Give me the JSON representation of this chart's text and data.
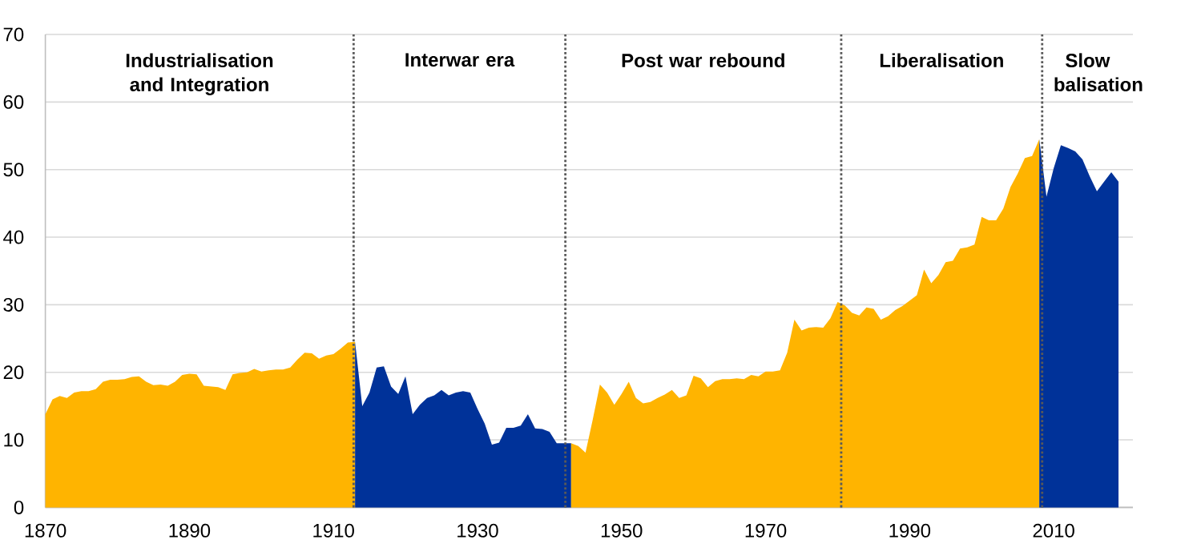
{
  "chart_data": {
    "type": "area",
    "series": [
      {
        "color": "#ffb400",
        "x": [
          1870,
          1871,
          1872,
          1873,
          1874,
          1875,
          1876,
          1877,
          1878,
          1879,
          1880,
          1881,
          1882,
          1883,
          1884,
          1885,
          1886,
          1887,
          1888,
          1889,
          1890,
          1891,
          1892,
          1893,
          1894,
          1895,
          1896,
          1897,
          1898,
          1899,
          1900,
          1901,
          1902,
          1903,
          1904,
          1905,
          1906,
          1907,
          1908,
          1909,
          1910,
          1911,
          1912,
          1913
        ],
        "values": [
          13.8,
          16.0,
          16.5,
          16.2,
          17.0,
          17.2,
          17.2,
          17.5,
          18.6,
          18.9,
          18.9,
          19.0,
          19.3,
          19.4,
          18.6,
          18.1,
          18.2,
          18.0,
          18.6,
          19.6,
          19.8,
          19.7,
          18.0,
          17.9,
          17.8,
          17.4,
          19.7,
          19.9,
          20.0,
          20.5,
          20.1,
          20.3,
          20.4,
          20.4,
          20.7,
          21.9,
          22.9,
          22.8,
          22.0,
          22.5,
          22.7,
          23.5,
          24.4,
          24.5
        ]
      },
      {
        "color": "#003299",
        "x": [
          1913,
          1914,
          1915,
          1916,
          1917,
          1918,
          1919,
          1920,
          1921,
          1922,
          1923,
          1924,
          1925,
          1926,
          1927,
          1928,
          1929,
          1930,
          1931,
          1932,
          1933,
          1934,
          1935,
          1936,
          1937,
          1938,
          1939,
          1940,
          1941,
          1942,
          1943
        ],
        "values": [
          24.5,
          15.0,
          17.0,
          20.7,
          20.9,
          17.9,
          16.8,
          19.4,
          13.8,
          15.2,
          16.2,
          16.6,
          17.4,
          16.6,
          17.0,
          17.2,
          17.0,
          14.6,
          12.4,
          9.3,
          9.6,
          11.8,
          11.8,
          12.1,
          13.8,
          11.7,
          11.6,
          11.2,
          9.5,
          9.5,
          9.5
        ]
      },
      {
        "color": "#ffb400",
        "x": [
          1943,
          1944,
          1945,
          1946,
          1947,
          1948,
          1949,
          1950,
          1951,
          1952,
          1953,
          1954,
          1955,
          1956,
          1957,
          1958,
          1959,
          1960,
          1961,
          1962,
          1963,
          1964,
          1965,
          1966,
          1967,
          1968,
          1969,
          1970,
          1971,
          1972,
          1973,
          1974,
          1975,
          1976,
          1977,
          1978,
          1979,
          1980,
          1981,
          1982,
          1983,
          1984,
          1985,
          1986,
          1987,
          1988,
          1989,
          1990,
          1991,
          1992,
          1993,
          1994,
          1995,
          1996,
          1997,
          1998,
          1999,
          2000,
          2001,
          2002,
          2003,
          2004,
          2005,
          2006,
          2007,
          2008
        ],
        "values": [
          9.5,
          9.1,
          8.1,
          13.0,
          18.2,
          17.0,
          15.2,
          16.8,
          18.6,
          16.2,
          15.4,
          15.6,
          16.2,
          16.7,
          17.4,
          16.2,
          16.6,
          19.5,
          19.1,
          17.8,
          18.7,
          19.0,
          19.0,
          19.1,
          19.0,
          19.6,
          19.4,
          20.1,
          20.1,
          20.3,
          22.9,
          27.8,
          26.2,
          26.6,
          26.7,
          26.6,
          28.0,
          30.4,
          29.9,
          28.8,
          28.4,
          29.6,
          29.4,
          27.8,
          28.3,
          29.2,
          29.8,
          30.6,
          31.4,
          35.2,
          33.2,
          34.4,
          36.3,
          36.5,
          38.3,
          38.5,
          38.9,
          43.0,
          42.5,
          42.5,
          44.2,
          47.4,
          49.4,
          51.7,
          52.0,
          54.5
        ]
      },
      {
        "color": "#003299",
        "x": [
          2008,
          2009,
          2010,
          2011,
          2012,
          2013,
          2014,
          2015,
          2016,
          2017,
          2018,
          2019
        ],
        "values": [
          54.5,
          46.0,
          50.2,
          53.6,
          53.2,
          52.7,
          51.5,
          49.0,
          46.8,
          48.2,
          49.6,
          48.2
        ]
      }
    ],
    "xlim": [
      1870,
      2021
    ],
    "xticks": [
      1870,
      1890,
      1910,
      1930,
      1950,
      1970,
      1990,
      2010
    ],
    "ylim": [
      0,
      70
    ],
    "yticks": [
      0,
      10,
      20,
      30,
      40,
      50,
      60,
      70
    ],
    "grid": "y",
    "ref_lines": [
      {
        "axis": "x",
        "value": 1912.8,
        "color": "#595959",
        "line_style": "dotted"
      },
      {
        "axis": "x",
        "value": 1942.2,
        "color": "#595959",
        "line_style": "dotted"
      },
      {
        "axis": "x",
        "value": 1980.5,
        "color": "#595959",
        "line_style": "dotted"
      },
      {
        "axis": "x",
        "value": 2008.4,
        "color": "#595959",
        "line_style": "dotted"
      }
    ],
    "annotations": [
      "Industrialisation and Integration",
      "Interwar era",
      "Post war rebound",
      "Liberalisation",
      "Slow balisation"
    ]
  }
}
